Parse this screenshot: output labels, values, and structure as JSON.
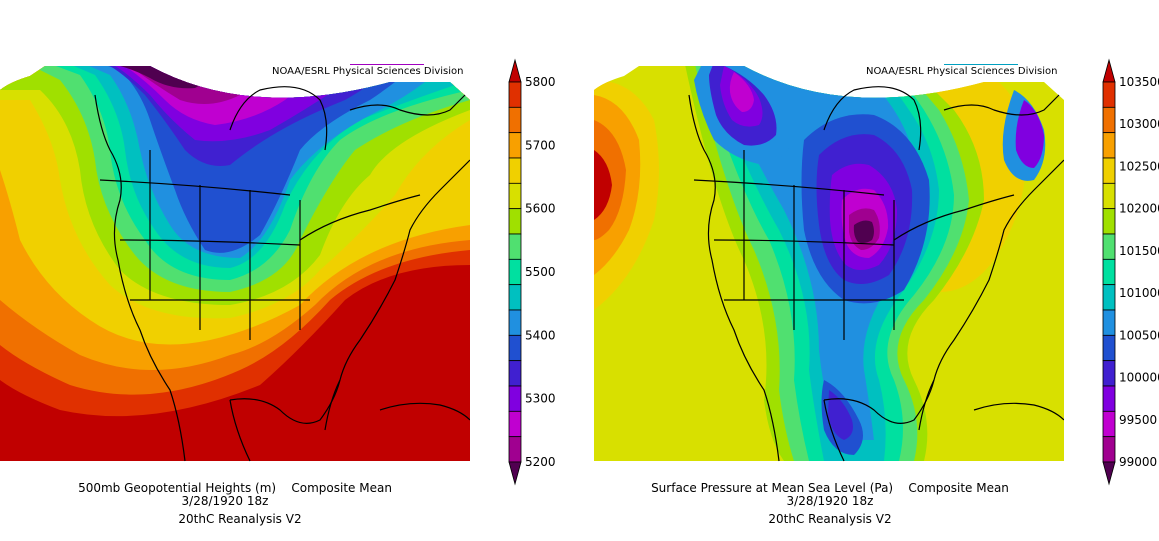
{
  "left_panel": {
    "credit": "NOAA/ESRL Physical Sciences Division",
    "caption_line1": "500mb Geopotential Heights (m)    Composite Mean",
    "caption_line2": "3/28/1920 18z",
    "caption_line3": "20thC Reanalysis V2",
    "colorbar": {
      "labels": [
        "5800",
        "5700",
        "5600",
        "5500",
        "5400",
        "5300",
        "5200"
      ],
      "colors": [
        "#c00000",
        "#e03000",
        "#f07000",
        "#f8a000",
        "#f0d000",
        "#d8e000",
        "#a0e000",
        "#50e070",
        "#00e0a0",
        "#00c0c0",
        "#2090e0",
        "#2050d0",
        "#4020d0",
        "#8000e0",
        "#c000d0",
        "#a00090",
        "#500050"
      ]
    }
  },
  "right_panel": {
    "credit": "NOAA/ESRL Physical Sciences Division",
    "caption_line1": "Surface Pressure at Mean Sea Level (Pa)    Composite Mean",
    "caption_line2": "3/28/1920 18z",
    "caption_line3": "20thC Reanalysis V2",
    "colorbar": {
      "labels": [
        "103500",
        "103000",
        "102500",
        "102000",
        "101500",
        "101000",
        "100500",
        "100000",
        "99500",
        "99000"
      ],
      "colors": [
        "#c00000",
        "#e03000",
        "#f07000",
        "#f8a000",
        "#f0d000",
        "#d8e000",
        "#a0e000",
        "#50e070",
        "#00e0a0",
        "#00c0c0",
        "#2090e0",
        "#2050d0",
        "#4020d0",
        "#8000e0",
        "#c000d0",
        "#a00090",
        "#500050"
      ]
    }
  }
}
